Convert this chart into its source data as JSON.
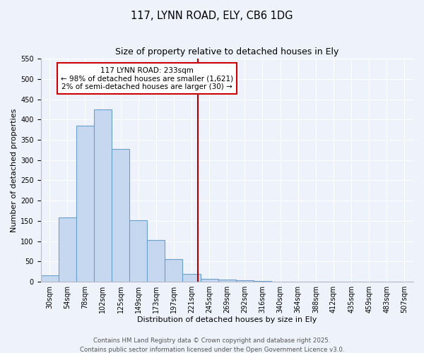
{
  "title": "117, LYNN ROAD, ELY, CB6 1DG",
  "subtitle": "Size of property relative to detached houses in Ely",
  "xlabel": "Distribution of detached houses by size in Ely",
  "ylabel": "Number of detached properties",
  "bin_labels": [
    "30sqm",
    "54sqm",
    "78sqm",
    "102sqm",
    "125sqm",
    "149sqm",
    "173sqm",
    "197sqm",
    "221sqm",
    "245sqm",
    "269sqm",
    "292sqm",
    "316sqm",
    "340sqm",
    "364sqm",
    "388sqm",
    "412sqm",
    "435sqm",
    "459sqm",
    "483sqm",
    "507sqm"
  ],
  "bar_values": [
    15,
    158,
    385,
    425,
    328,
    152,
    102,
    55,
    20,
    8,
    5,
    3,
    2,
    1,
    0,
    1,
    0,
    1,
    0,
    0,
    1
  ],
  "bar_color": "#c5d8f0",
  "bar_edge_color": "#6aa0cc",
  "vline_x_index": 8.375,
  "vline_color": "#aa0000",
  "bin_width": 1,
  "ylim": [
    0,
    550
  ],
  "yticks": [
    0,
    50,
    100,
    150,
    200,
    250,
    300,
    350,
    400,
    450,
    500,
    550
  ],
  "annotation_line1": "117 LYNN ROAD: 233sqm",
  "annotation_line2": "← 98% of detached houses are smaller (1,621)",
  "annotation_line3": "2% of semi-detached houses are larger (30) →",
  "annotation_box_color": "#cc0000",
  "footer_line1": "Contains HM Land Registry data © Crown copyright and database right 2025.",
  "footer_line2": "Contains public sector information licensed under the Open Government Licence v3.0.",
  "background_color": "#eef2fb",
  "grid_color": "#ffffff",
  "title_fontsize": 10.5,
  "subtitle_fontsize": 9,
  "axis_label_fontsize": 8,
  "tick_fontsize": 7,
  "annotation_fontsize": 7.5,
  "footer_fontsize": 6.2
}
